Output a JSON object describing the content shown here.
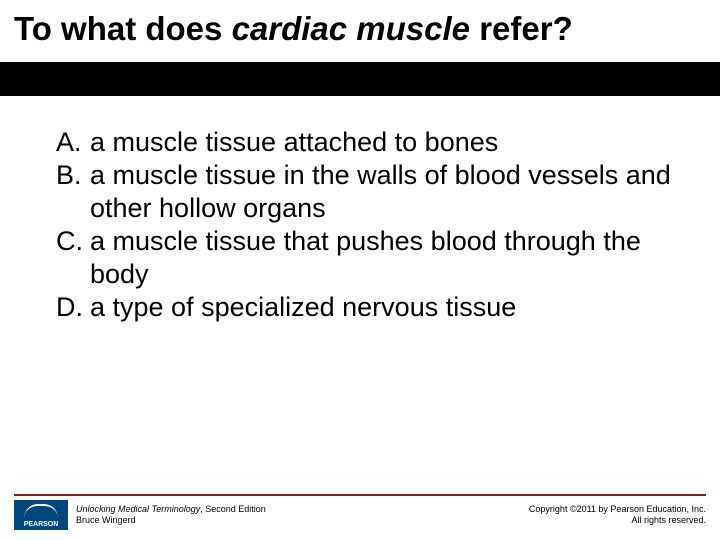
{
  "colors": {
    "band": "#000000",
    "footer_line": "#8a1a1a",
    "logo_bg": "#00467f",
    "text": "#000000",
    "background": "#ffffff"
  },
  "title": {
    "prefix": "To what does ",
    "italic": "cardiac muscle",
    "suffix": " refer?",
    "fontsize": 33
  },
  "options": [
    {
      "letter": "A.",
      "text": "a muscle tissue attached to bones"
    },
    {
      "letter": "B.",
      "text": "a muscle tissue in the walls of blood vessels and other hollow organs"
    },
    {
      "letter": "C.",
      "text": "a muscle tissue that pushes blood through the body"
    },
    {
      "letter": "D.",
      "text": "a type of specialized nervous tissue"
    }
  ],
  "option_fontsize": 27,
  "footer": {
    "logo_label": "PEARSON",
    "book_title": "Unlocking Medical Terminology",
    "book_edition": ", Second Edition",
    "author": "Bruce Wingerd",
    "copyright_line1": "Copyright ©2011 by Pearson Education, Inc.",
    "copyright_line2": "All rights reserved.",
    "fontsize": 9
  }
}
